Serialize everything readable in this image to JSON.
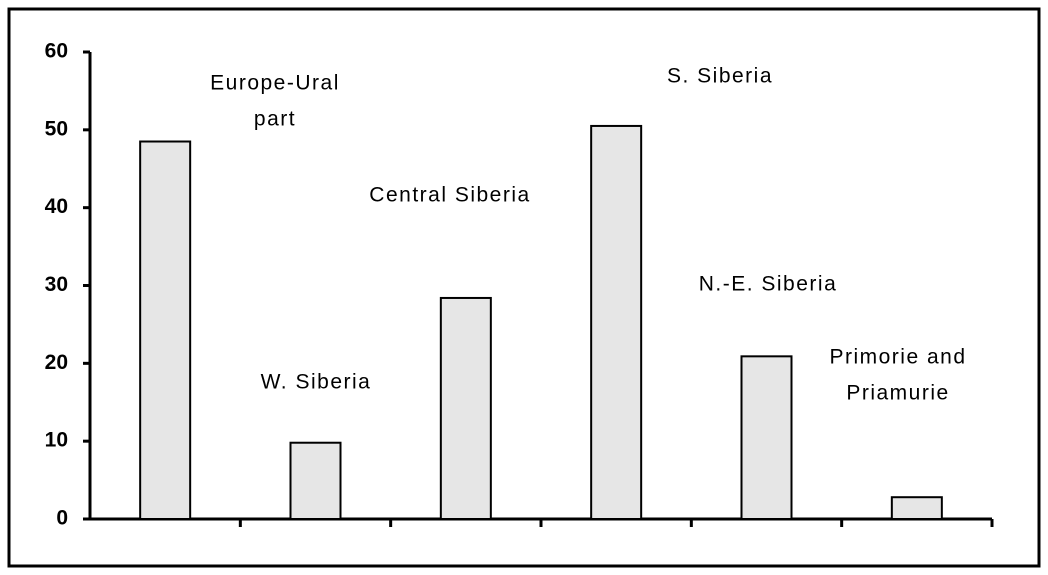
{
  "chart_data": {
    "type": "bar",
    "categories": [
      [
        "Europe-Ural",
        "part"
      ],
      [
        "W. Siberia"
      ],
      [
        "Central Siberia"
      ],
      [
        "S. Siberia"
      ],
      [
        "N.-E. Siberia"
      ],
      [
        "Primorie and",
        "Priamurie"
      ]
    ],
    "values": [
      48.5,
      9.8,
      28.4,
      50.5,
      20.9,
      2.8
    ],
    "color": "#e6e6e6",
    "ylim": [
      0,
      60
    ],
    "yticks": [
      0,
      10,
      20,
      30,
      40,
      50,
      60
    ],
    "grid": false
  }
}
